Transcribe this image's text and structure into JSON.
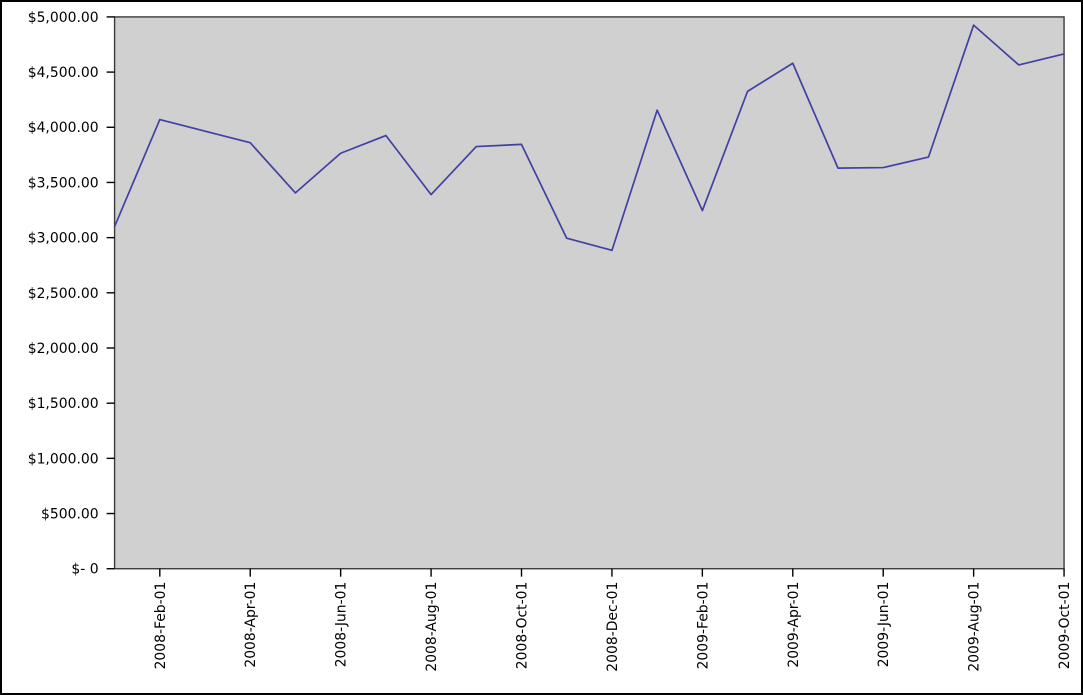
{
  "chart_data": {
    "type": "line",
    "title": "",
    "xlabel": "",
    "ylabel": "",
    "legend": "none",
    "grid": "off",
    "x": [
      "2008-Jan-01",
      "2008-Feb-01",
      "2008-Mar-01",
      "2008-Apr-01",
      "2008-May-01",
      "2008-Jun-01",
      "2008-Jul-01",
      "2008-Aug-01",
      "2008-Sep-01",
      "2008-Oct-01",
      "2008-Nov-01",
      "2008-Dec-01",
      "2009-Jan-01",
      "2009-Feb-01",
      "2009-Mar-01",
      "2009-Apr-01",
      "2009-May-01",
      "2009-Jun-01",
      "2009-Jul-01",
      "2009-Aug-01",
      "2009-Sep-01",
      "2009-Oct-01"
    ],
    "values": [
      3100,
      4070,
      3965,
      3860,
      3405,
      3765,
      3925,
      3390,
      3825,
      3845,
      2995,
      2885,
      4155,
      3245,
      4325,
      4580,
      3630,
      3635,
      3730,
      4925,
      4565,
      4665
    ],
    "x_tick_labels": [
      "2008-Feb-01",
      "2008-Apr-01",
      "2008-Jun-01",
      "2008-Aug-01",
      "2008-Oct-01",
      "2008-Dec-01",
      "2009-Feb-01",
      "2009-Apr-01",
      "2009-Jun-01",
      "2009-Aug-01",
      "2009-Oct-01"
    ],
    "x_tick_month_indices": [
      1,
      3,
      5,
      7,
      9,
      11,
      13,
      15,
      17,
      19,
      21
    ],
    "y_tick_labels": [
      "$- 0",
      "$500.00",
      "$1,000.00",
      "$1,500.00",
      "$2,000.00",
      "$2,500.00",
      "$3,000.00",
      "$3,500.00",
      "$4,000.00",
      "$4,500.00",
      "$5,000.00"
    ],
    "y_tick_values": [
      0,
      500,
      1000,
      1500,
      2000,
      2500,
      3000,
      3500,
      4000,
      4500,
      5000
    ],
    "ylim": [
      0,
      5000
    ],
    "colors": {
      "line": "#4141a3",
      "plot_bg": "#d0d0d0",
      "plot_border": "#3a3a3a",
      "tick": "#000000",
      "text": "#000000",
      "page_bg": "#ffffff",
      "outer_border": "#000000"
    }
  }
}
